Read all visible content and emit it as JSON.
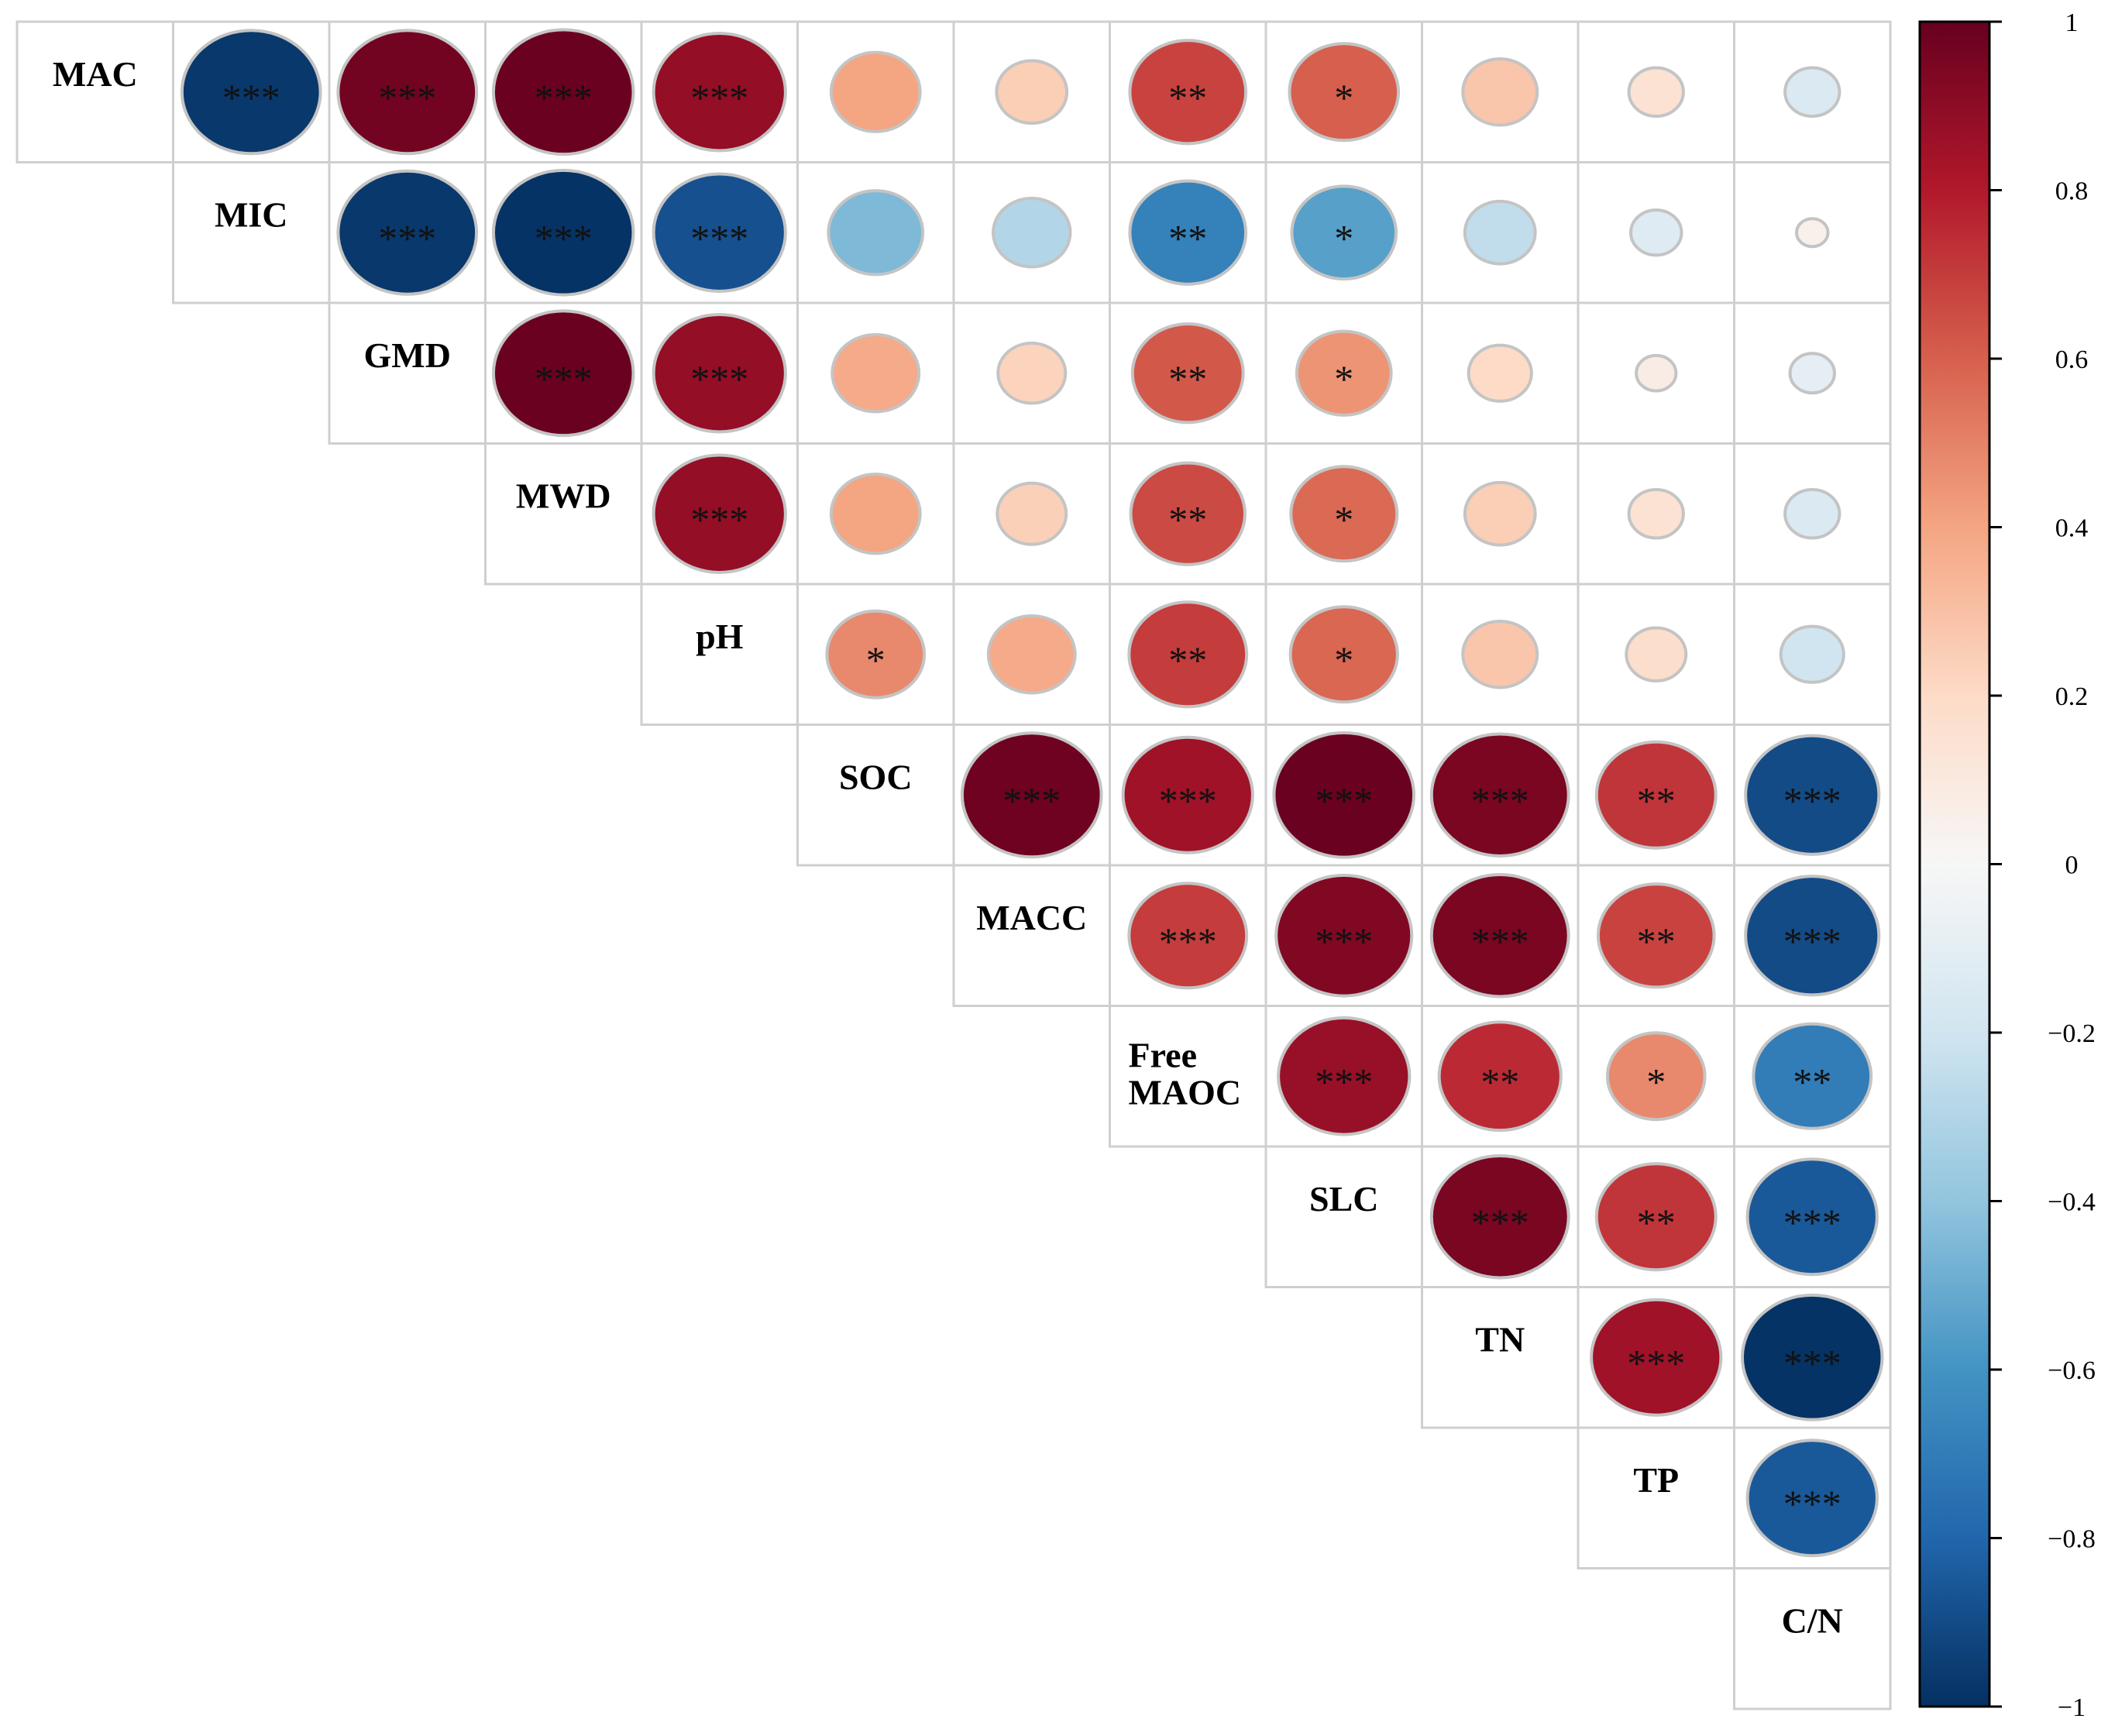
{
  "chart_data": {
    "type": "heatmap",
    "subtype": "correlation-matrix-upper-triangle",
    "title": "",
    "variables": [
      "MAC",
      "MIC",
      "GMD",
      "MWD",
      "pH",
      "SOC",
      "MACC",
      "Free\nMAOC",
      "SLC",
      "TN",
      "TP",
      "C/N"
    ],
    "correlations": [
      {
        "row": 0,
        "col": 1,
        "r": -0.97,
        "sig": "***"
      },
      {
        "row": 0,
        "col": 2,
        "r": 0.97,
        "sig": "***"
      },
      {
        "row": 0,
        "col": 3,
        "r": 0.99,
        "sig": "***"
      },
      {
        "row": 0,
        "col": 4,
        "r": 0.88,
        "sig": "***"
      },
      {
        "row": 0,
        "col": 5,
        "r": 0.4,
        "sig": ""
      },
      {
        "row": 0,
        "col": 6,
        "r": 0.25,
        "sig": ""
      },
      {
        "row": 0,
        "col": 7,
        "r": 0.68,
        "sig": "**"
      },
      {
        "row": 0,
        "col": 8,
        "r": 0.6,
        "sig": "*"
      },
      {
        "row": 0,
        "col": 9,
        "r": 0.28,
        "sig": ""
      },
      {
        "row": 0,
        "col": 10,
        "r": 0.15,
        "sig": ""
      },
      {
        "row": 0,
        "col": 11,
        "r": -0.15,
        "sig": ""
      },
      {
        "row": 1,
        "col": 2,
        "r": -0.97,
        "sig": "***"
      },
      {
        "row": 1,
        "col": 3,
        "r": -0.99,
        "sig": "***"
      },
      {
        "row": 1,
        "col": 4,
        "r": -0.88,
        "sig": "***"
      },
      {
        "row": 1,
        "col": 5,
        "r": -0.45,
        "sig": ""
      },
      {
        "row": 1,
        "col": 6,
        "r": -0.3,
        "sig": ""
      },
      {
        "row": 1,
        "col": 7,
        "r": -0.68,
        "sig": "**"
      },
      {
        "row": 1,
        "col": 8,
        "r": -0.55,
        "sig": "*"
      },
      {
        "row": 1,
        "col": 9,
        "r": -0.25,
        "sig": ""
      },
      {
        "row": 1,
        "col": 10,
        "r": -0.13,
        "sig": ""
      },
      {
        "row": 1,
        "col": 11,
        "r": 0.05,
        "sig": ""
      },
      {
        "row": 2,
        "col": 3,
        "r": 0.99,
        "sig": "***"
      },
      {
        "row": 2,
        "col": 4,
        "r": 0.88,
        "sig": "***"
      },
      {
        "row": 2,
        "col": 5,
        "r": 0.38,
        "sig": ""
      },
      {
        "row": 2,
        "col": 6,
        "r": 0.23,
        "sig": ""
      },
      {
        "row": 2,
        "col": 7,
        "r": 0.62,
        "sig": "**"
      },
      {
        "row": 2,
        "col": 8,
        "r": 0.45,
        "sig": "*"
      },
      {
        "row": 2,
        "col": 9,
        "r": 0.2,
        "sig": ""
      },
      {
        "row": 2,
        "col": 10,
        "r": 0.08,
        "sig": ""
      },
      {
        "row": 2,
        "col": 11,
        "r": -0.1,
        "sig": ""
      },
      {
        "row": 3,
        "col": 4,
        "r": 0.88,
        "sig": "***"
      },
      {
        "row": 3,
        "col": 5,
        "r": 0.4,
        "sig": ""
      },
      {
        "row": 3,
        "col": 6,
        "r": 0.24,
        "sig": ""
      },
      {
        "row": 3,
        "col": 7,
        "r": 0.66,
        "sig": "**"
      },
      {
        "row": 3,
        "col": 8,
        "r": 0.57,
        "sig": "*"
      },
      {
        "row": 3,
        "col": 9,
        "r": 0.25,
        "sig": ""
      },
      {
        "row": 3,
        "col": 10,
        "r": 0.15,
        "sig": ""
      },
      {
        "row": 3,
        "col": 11,
        "r": -0.15,
        "sig": ""
      },
      {
        "row": 4,
        "col": 5,
        "r": 0.48,
        "sig": "*"
      },
      {
        "row": 4,
        "col": 6,
        "r": 0.38,
        "sig": ""
      },
      {
        "row": 4,
        "col": 7,
        "r": 0.7,
        "sig": "**"
      },
      {
        "row": 4,
        "col": 8,
        "r": 0.58,
        "sig": "*"
      },
      {
        "row": 4,
        "col": 9,
        "r": 0.28,
        "sig": ""
      },
      {
        "row": 4,
        "col": 10,
        "r": 0.18,
        "sig": ""
      },
      {
        "row": 4,
        "col": 11,
        "r": -0.2,
        "sig": ""
      },
      {
        "row": 5,
        "col": 6,
        "r": 0.98,
        "sig": "***"
      },
      {
        "row": 5,
        "col": 7,
        "r": 0.85,
        "sig": "***"
      },
      {
        "row": 5,
        "col": 8,
        "r": 0.99,
        "sig": "***"
      },
      {
        "row": 5,
        "col": 9,
        "r": 0.95,
        "sig": "***"
      },
      {
        "row": 5,
        "col": 10,
        "r": 0.72,
        "sig": "**"
      },
      {
        "row": 5,
        "col": 11,
        "r": -0.9,
        "sig": "***"
      },
      {
        "row": 6,
        "col": 7,
        "r": 0.7,
        "sig": "***"
      },
      {
        "row": 6,
        "col": 8,
        "r": 0.93,
        "sig": "***"
      },
      {
        "row": 6,
        "col": 9,
        "r": 0.95,
        "sig": "***"
      },
      {
        "row": 6,
        "col": 10,
        "r": 0.68,
        "sig": "**"
      },
      {
        "row": 6,
        "col": 11,
        "r": -0.9,
        "sig": "***"
      },
      {
        "row": 7,
        "col": 8,
        "r": 0.87,
        "sig": "***"
      },
      {
        "row": 7,
        "col": 9,
        "r": 0.75,
        "sig": "**"
      },
      {
        "row": 7,
        "col": 10,
        "r": 0.48,
        "sig": "*"
      },
      {
        "row": 7,
        "col": 11,
        "r": -0.7,
        "sig": "**"
      },
      {
        "row": 8,
        "col": 9,
        "r": 0.95,
        "sig": "***"
      },
      {
        "row": 8,
        "col": 10,
        "r": 0.72,
        "sig": "**"
      },
      {
        "row": 8,
        "col": 11,
        "r": -0.85,
        "sig": "***"
      },
      {
        "row": 9,
        "col": 10,
        "r": 0.85,
        "sig": "***"
      },
      {
        "row": 9,
        "col": 11,
        "r": -0.99,
        "sig": "***"
      },
      {
        "row": 10,
        "col": 11,
        "r": -0.85,
        "sig": "***"
      }
    ],
    "colorbar": {
      "range": [
        -1,
        1
      ],
      "ticks": [
        1,
        0.8,
        0.6,
        0.4,
        0.2,
        0,
        -0.2,
        -0.4,
        -0.6,
        -0.8,
        -1
      ],
      "tick_labels": [
        "1",
        "0.8",
        "0.6",
        "0.4",
        "0.2",
        "0",
        "−0.2",
        "−0.4",
        "−0.6",
        "−0.8",
        "−1"
      ],
      "colors": [
        "#053061",
        "#2166ac",
        "#4393c3",
        "#92c5de",
        "#d1e5f0",
        "#f7f7f7",
        "#fddbc7",
        "#f4a582",
        "#d6604d",
        "#b2182b",
        "#67001f"
      ],
      "position": "right"
    }
  }
}
